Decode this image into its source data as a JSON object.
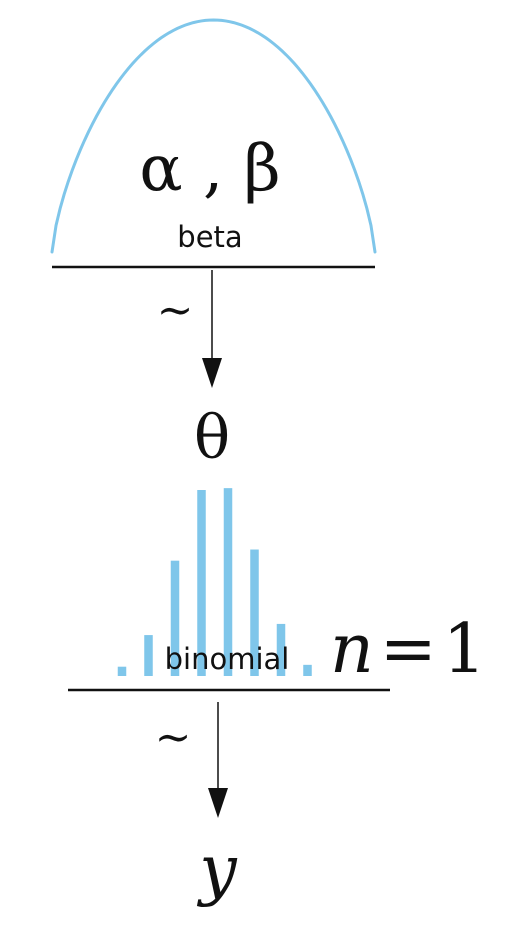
{
  "diagram": {
    "colors": {
      "curve": "#7fc6ea",
      "bars": "#7fc6ea",
      "lines": "#111111",
      "background": "#ffffff"
    },
    "top_node": {
      "params": "α , β",
      "distribution_label": "beta"
    },
    "arrow_1": {
      "relation_symbol": "~"
    },
    "middle_node": {
      "variable": "θ",
      "distribution_label": "binomial",
      "parameter_name": "n",
      "parameter_equals": "=",
      "parameter_value": "1",
      "bar_heights": [
        0.05,
        0.22,
        0.62,
        1.0,
        1.01,
        0.68,
        0.28,
        0.06
      ]
    },
    "arrow_2": {
      "relation_symbol": "~"
    },
    "bottom_node": {
      "variable": "y"
    }
  }
}
